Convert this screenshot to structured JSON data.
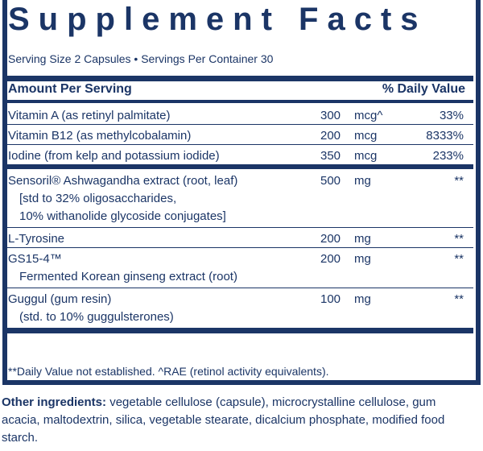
{
  "title": "Supplement Facts",
  "serving": "Serving Size 2 Capsules • Servings Per Container 30",
  "header": {
    "amount": "Amount Per Serving",
    "daily_value": "% Daily Value"
  },
  "vitamins": [
    {
      "name": [
        "Vitamin A (as retinyl palmitate)"
      ],
      "amount": "300",
      "unit": "mcg^",
      "dv": "33%"
    },
    {
      "name": [
        "Vitamin B12 (as methylcobalamin)"
      ],
      "amount": "200",
      "unit": "mcg",
      "dv": "8333%"
    },
    {
      "name": [
        "Iodine (from kelp and potassium iodide)"
      ],
      "amount": "350",
      "unit": "mcg",
      "dv": "233%"
    }
  ],
  "extracts": [
    {
      "name": [
        "Sensoril® Ashwagandha extract (root, leaf)",
        "[std to 32% oligosaccharides,",
        "10% withanolide glycoside conjugates]"
      ],
      "amount": "500",
      "unit": "mg",
      "dv": "**"
    },
    {
      "name": [
        "L-Tyrosine"
      ],
      "amount": "200",
      "unit": "mg",
      "dv": "**"
    },
    {
      "name": [
        "GS15-4™",
        "Fermented Korean ginseng extract (root)"
      ],
      "amount": "200",
      "unit": "mg",
      "dv": "**"
    },
    {
      "name": [
        "Guggul (gum resin)",
        "(std. to 10% guggulsterones)"
      ],
      "amount": "100",
      "unit": "mg",
      "dv": "**"
    }
  ],
  "footnote": "**Daily Value not established. ^RAE (retinol activity equivalents).",
  "other_label": "Other ingredients:",
  "other_text": "vegetable cellulose (capsule), microcrystalline cellulose, gum acacia, maltodextrin, silica, vegetable stearate, dicalcium phosphate, modified food starch."
}
